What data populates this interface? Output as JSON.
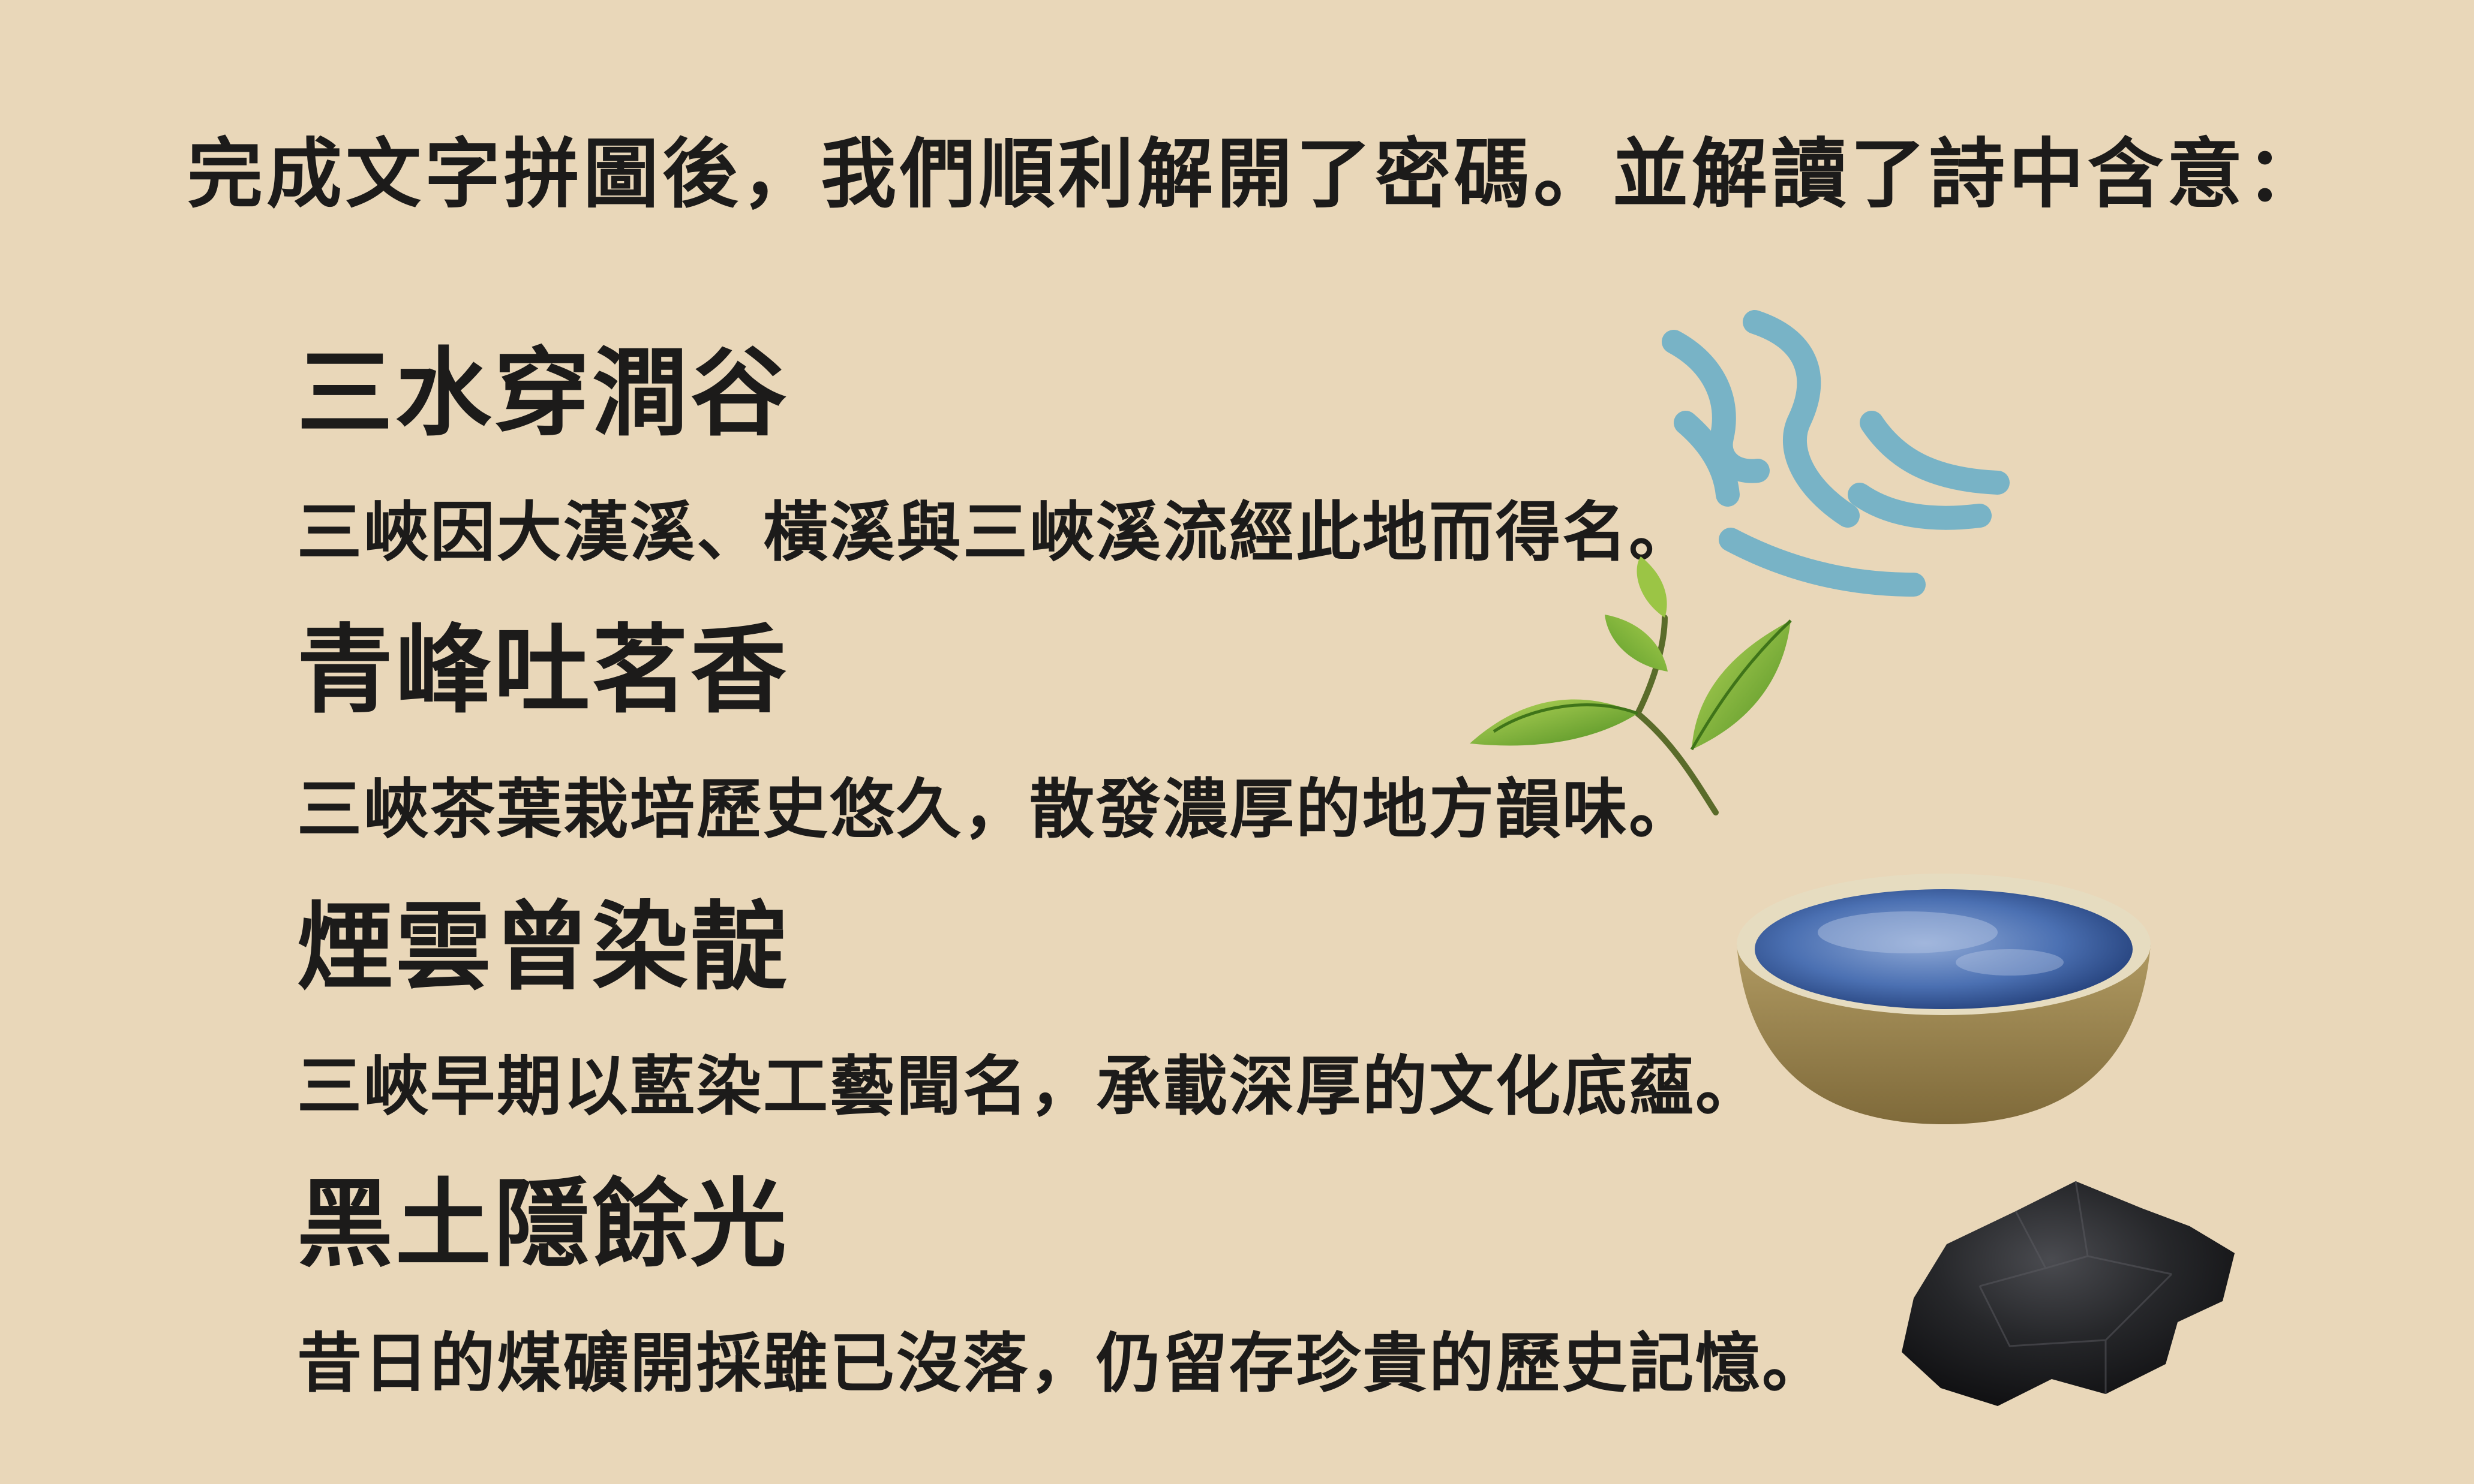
{
  "intro": "完成文字拼圖後，我們順利解開了密碼。並解讀了詩中含意：",
  "lines": [
    {
      "title": "三水穿澗谷",
      "description": "三峽因大漢溪、橫溪與三峽溪流經此地而得名。",
      "icon": "water-ripple-icon"
    },
    {
      "title": "青峰吐茗香",
      "description": "三峽茶葉栽培歷史悠久，散發濃厚的地方韻味。",
      "icon": "tea-leaves-icon"
    },
    {
      "title": "煙雲曾染靛",
      "description": "三峽早期以藍染工藝聞名，承載深厚的文化底蘊。",
      "icon": "indigo-dye-bowl-icon"
    },
    {
      "title": "黑土隱餘光",
      "description": "昔日的煤礦開採雖已沒落，仍留存珍貴的歷史記憶。",
      "icon": "coal-lump-icon"
    }
  ],
  "colors": {
    "background": "#e9d7b9",
    "text": "#1c1b1a",
    "water": "#6fb1c8",
    "tea_leaf": "#7ab53a",
    "indigo": "#3d65a8",
    "bowl": "#a88f58",
    "coal": "#1f1f21"
  }
}
